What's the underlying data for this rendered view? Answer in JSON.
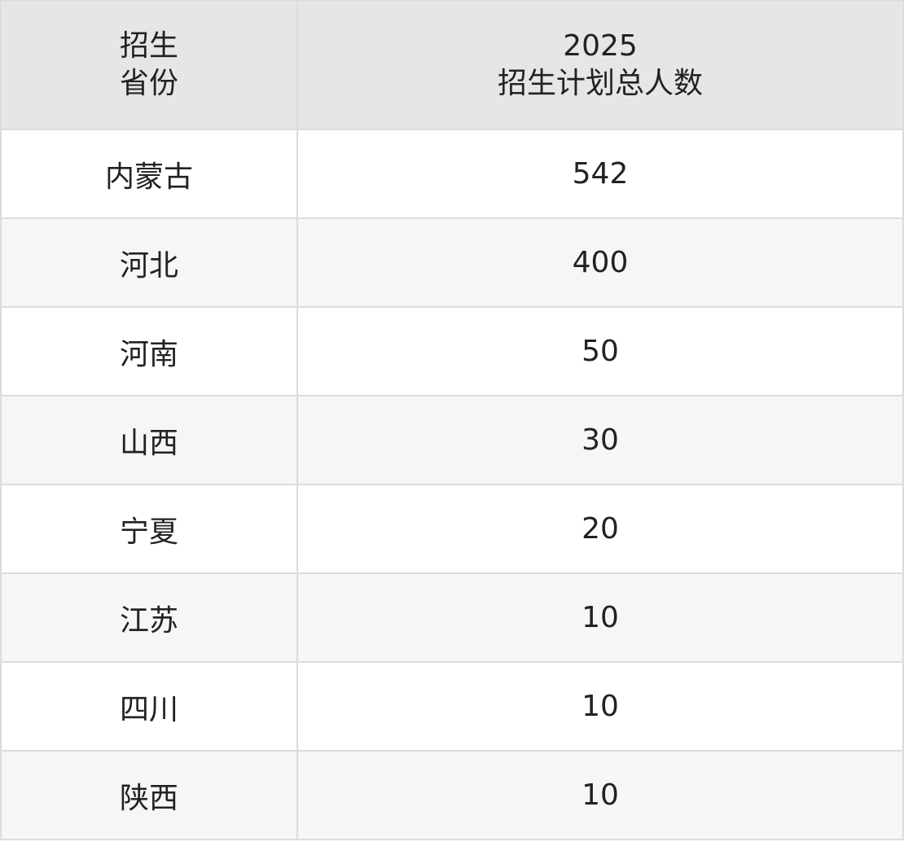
{
  "table": {
    "header": [
      [
        "招生",
        "省份"
      ],
      [
        "2025",
        "招生计划总人数"
      ]
    ],
    "rows": [
      [
        "内蒙古",
        542
      ],
      [
        "河北",
        400
      ],
      [
        "河南",
        50
      ],
      [
        "山西",
        30
      ],
      [
        "宁夏",
        20
      ],
      [
        "江苏",
        10
      ],
      [
        "四川",
        10
      ],
      [
        "陕西",
        10
      ]
    ]
  }
}
